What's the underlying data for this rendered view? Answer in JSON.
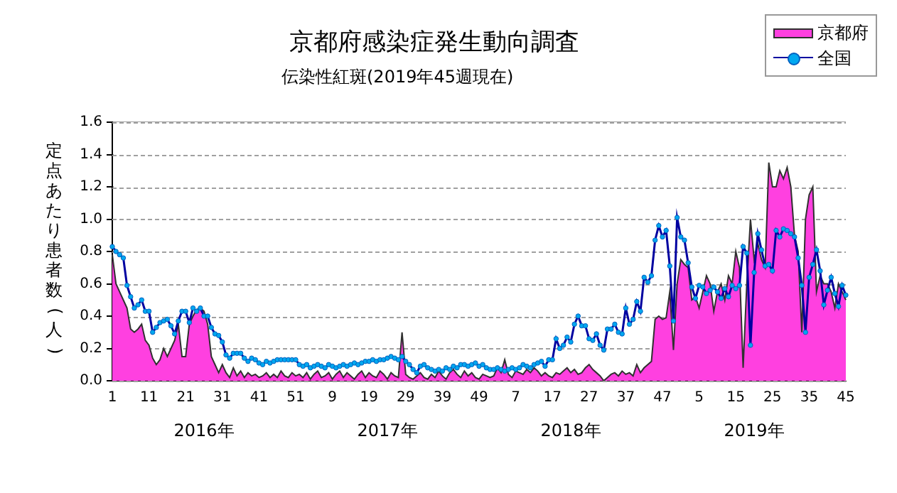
{
  "chart_data": {
    "type": "line",
    "title": "京都府感染症発生動向調査",
    "subtitle": "伝染性紅斑(2019年45週現在)",
    "ylabel": "定点あたり患者数(人)",
    "annotations": [
      "2016年",
      "2017年",
      "2018年",
      "2019年"
    ],
    "categories": [
      "1",
      null,
      null,
      null,
      null,
      null,
      null,
      null,
      null,
      null,
      "11",
      null,
      null,
      null,
      null,
      null,
      null,
      null,
      null,
      null,
      "21",
      null,
      null,
      null,
      null,
      null,
      null,
      null,
      null,
      null,
      "31",
      null,
      null,
      null,
      null,
      null,
      null,
      null,
      null,
      null,
      "41",
      null,
      null,
      null,
      null,
      null,
      null,
      null,
      null,
      null,
      "51",
      null,
      null,
      null,
      null,
      null,
      null,
      null,
      null,
      null,
      "9",
      null,
      null,
      null,
      null,
      null,
      null,
      null,
      null,
      null,
      "19",
      null,
      null,
      null,
      null,
      null,
      null,
      null,
      null,
      null,
      "29",
      null,
      null,
      null,
      null,
      null,
      null,
      null,
      null,
      null,
      "39",
      null,
      null,
      null,
      null,
      null,
      null,
      null,
      null,
      null,
      "49",
      null,
      null,
      null,
      null,
      null,
      null,
      null,
      null,
      null,
      "7",
      null,
      null,
      null,
      null,
      null,
      null,
      null,
      null,
      null,
      "17",
      null,
      null,
      null,
      null,
      null,
      null,
      null,
      null,
      null,
      "27",
      null,
      null,
      null,
      null,
      null,
      null,
      null,
      null,
      null,
      "37",
      null,
      null,
      null,
      null,
      null,
      null,
      null,
      null,
      null,
      "47",
      null,
      null,
      null,
      null,
      null,
      null,
      null,
      null,
      null,
      "5",
      null,
      null,
      null,
      null,
      null,
      null,
      null,
      null,
      null,
      "15",
      null,
      null,
      null,
      null,
      null,
      null,
      null,
      null,
      null,
      "25",
      null,
      null,
      null,
      null,
      null,
      null,
      null,
      null,
      null,
      "35",
      null,
      null,
      null,
      null,
      null,
      null,
      null,
      null,
      null,
      "45"
    ],
    "series": [
      {
        "name": "京都府",
        "type": "area",
        "marker": "none",
        "color": "#ff40e0",
        "values": [
          0.78,
          0.6,
          0.55,
          0.5,
          0.45,
          0.32,
          0.3,
          0.32,
          0.35,
          0.25,
          0.22,
          0.14,
          0.1,
          0.13,
          0.2,
          0.15,
          0.2,
          0.25,
          0.35,
          0.15,
          0.15,
          0.35,
          0.4,
          0.44,
          0.45,
          0.43,
          0.35,
          0.15,
          0.1,
          0.05,
          0.1,
          0.05,
          0.02,
          0.08,
          0.03,
          0.06,
          0.02,
          0.05,
          0.03,
          0.04,
          0.02,
          0.03,
          0.05,
          0.02,
          0.04,
          0.02,
          0.06,
          0.03,
          0.02,
          0.05,
          0.03,
          0.04,
          0.02,
          0.05,
          0.01,
          0.04,
          0.06,
          0.02,
          0.03,
          0.05,
          0.01,
          0.04,
          0.06,
          0.02,
          0.05,
          0.03,
          0.01,
          0.04,
          0.06,
          0.02,
          0.05,
          0.03,
          0.02,
          0.06,
          0.04,
          0.01,
          0.05,
          0.03,
          0.02,
          0.3,
          0.04,
          0.02,
          0.01,
          0.03,
          0.05,
          0.02,
          0.01,
          0.04,
          0.02,
          0.06,
          0.03,
          0.01,
          0.05,
          0.07,
          0.04,
          0.02,
          0.06,
          0.03,
          0.05,
          0.02,
          0.01,
          0.04,
          0.03,
          0.02,
          0.03,
          0.08,
          0.05,
          0.13,
          0.04,
          0.02,
          0.06,
          0.05,
          0.04,
          0.07,
          0.05,
          0.08,
          0.06,
          0.03,
          0.05,
          0.03,
          0.02,
          0.05,
          0.04,
          0.06,
          0.08,
          0.05,
          0.07,
          0.04,
          0.05,
          0.08,
          0.1,
          0.07,
          0.05,
          0.03,
          0.0,
          0.02,
          0.04,
          0.05,
          0.03,
          0.06,
          0.04,
          0.05,
          0.03,
          0.1,
          0.05,
          0.08,
          0.1,
          0.12,
          0.38,
          0.4,
          0.38,
          0.39,
          0.55,
          0.19,
          0.6,
          0.75,
          0.72,
          0.7,
          0.5,
          0.52,
          0.45,
          0.55,
          0.65,
          0.6,
          0.43,
          0.55,
          0.6,
          0.5,
          0.65,
          0.6,
          0.8,
          0.7,
          0.08,
          0.6,
          1.0,
          0.75,
          0.85,
          0.75,
          0.7,
          1.35,
          1.2,
          1.2,
          1.3,
          1.25,
          1.32,
          1.2,
          0.9,
          0.8,
          0.3,
          1.0,
          1.15,
          1.2,
          0.55,
          0.65,
          0.6,
          0.6,
          0.55,
          0.45,
          0.6,
          0.55,
          0.5
        ]
      },
      {
        "name": "全国",
        "type": "line",
        "color": "#00a8f0",
        "values": [
          0.83,
          0.8,
          0.78,
          0.76,
          0.59,
          0.52,
          0.45,
          0.47,
          0.5,
          0.43,
          0.43,
          0.3,
          0.33,
          0.36,
          0.37,
          0.38,
          0.34,
          0.29,
          0.37,
          0.43,
          0.43,
          0.36,
          0.45,
          0.43,
          0.45,
          0.4,
          0.4,
          0.33,
          0.29,
          0.28,
          0.24,
          0.16,
          0.14,
          0.17,
          0.17,
          0.17,
          0.14,
          0.12,
          0.14,
          0.13,
          0.11,
          0.1,
          0.12,
          0.11,
          0.12,
          0.13,
          0.13,
          0.13,
          0.13,
          0.13,
          0.13,
          0.1,
          0.09,
          0.1,
          0.08,
          0.09,
          0.1,
          0.09,
          0.08,
          0.1,
          0.09,
          0.08,
          0.09,
          0.1,
          0.09,
          0.1,
          0.11,
          0.1,
          0.11,
          0.12,
          0.12,
          0.13,
          0.12,
          0.13,
          0.13,
          0.14,
          0.15,
          0.14,
          0.13,
          0.15,
          0.12,
          0.1,
          0.07,
          0.05,
          0.09,
          0.1,
          0.08,
          0.07,
          0.06,
          0.07,
          0.06,
          0.08,
          0.07,
          0.09,
          0.08,
          0.1,
          0.1,
          0.09,
          0.1,
          0.11,
          0.09,
          0.1,
          0.08,
          0.07,
          0.07,
          0.08,
          0.07,
          0.06,
          0.07,
          0.08,
          0.07,
          0.08,
          0.1,
          0.09,
          0.08,
          0.1,
          0.11,
          0.12,
          0.09,
          0.13,
          0.13,
          0.26,
          0.2,
          0.22,
          0.27,
          0.24,
          0.35,
          0.4,
          0.34,
          0.34,
          0.26,
          0.25,
          0.29,
          0.22,
          0.19,
          0.32,
          0.32,
          0.35,
          0.3,
          0.29,
          0.45,
          0.35,
          0.38,
          0.49,
          0.43,
          0.64,
          0.61,
          0.65,
          0.87,
          0.96,
          0.89,
          0.93,
          0.71,
          0.37,
          1.01,
          0.89,
          0.87,
          0.73,
          0.58,
          0.51,
          0.59,
          0.58,
          0.54,
          0.56,
          0.58,
          0.55,
          0.51,
          0.57,
          0.52,
          0.59,
          0.57,
          0.59,
          0.83,
          0.79,
          0.22,
          0.67,
          0.91,
          0.81,
          0.71,
          0.72,
          0.68,
          0.93,
          0.89,
          0.94,
          0.93,
          0.91,
          0.89,
          0.76,
          0.59,
          0.3,
          0.64,
          0.72,
          0.81,
          0.68,
          0.47,
          0.56,
          0.64,
          0.54,
          0.46,
          0.59,
          0.53
        ]
      }
    ],
    "ylim": [
      0,
      1.6
    ],
    "yticks": [
      {
        "value": 0,
        "label": "0.0"
      },
      {
        "value": 0.2,
        "label": "0.2"
      },
      {
        "value": 0.4,
        "label": "0.4"
      },
      {
        "value": 0.6,
        "label": "0.6"
      },
      {
        "value": 0.8,
        "label": "0.8"
      },
      {
        "value": 1.0,
        "label": "1.0"
      },
      {
        "value": 1.2,
        "label": "1.2"
      },
      {
        "value": 1.4,
        "label": "1.4"
      },
      {
        "value": 1.6,
        "label": "1.6"
      }
    ],
    "grid": "y",
    "legend": "top right",
    "marker": "circle"
  }
}
